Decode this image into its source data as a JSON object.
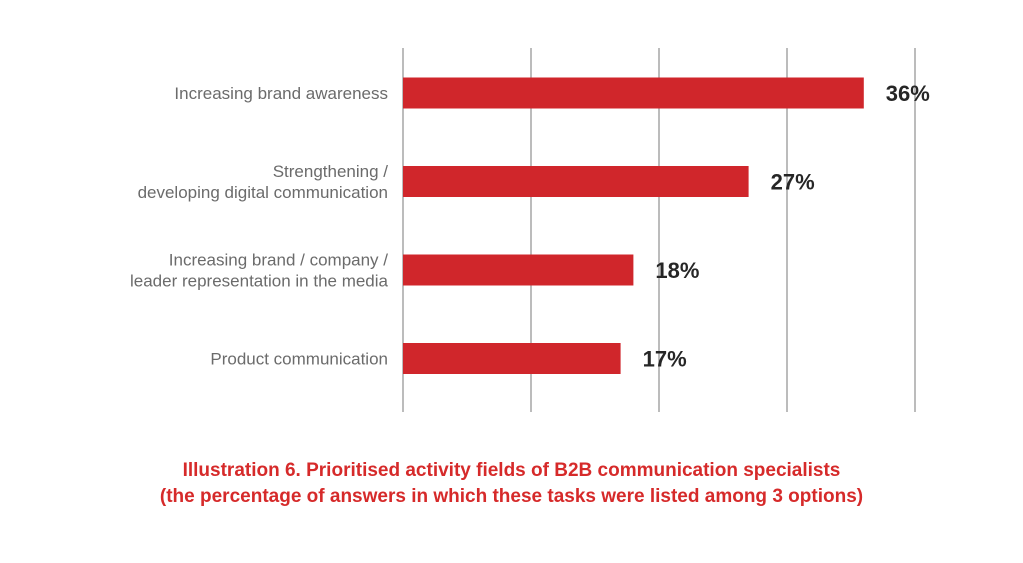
{
  "chart_data": {
    "type": "bar",
    "orientation": "horizontal",
    "categories": [
      [
        "Increasing brand awareness"
      ],
      [
        "Strengthening /",
        "developing digital communication"
      ],
      [
        "Increasing brand / company /",
        "leader representation in the media"
      ],
      [
        "Product communication"
      ]
    ],
    "values": [
      36,
      27,
      18,
      17
    ],
    "value_labels": [
      "36%",
      "27%",
      "18%",
      "17%"
    ],
    "xlim": [
      0,
      40
    ],
    "grid": "vertical",
    "bar_color": "#d0262b"
  },
  "caption": {
    "line1": "Illustration 6. Prioritised activity fields of B2B communication specialists",
    "line2": "(the percentage of answers in which these tasks were listed among 3 options)"
  },
  "colors": {
    "bar": "#d0262b",
    "caption": "#d62a2a",
    "grid": "#7a7a7a"
  }
}
